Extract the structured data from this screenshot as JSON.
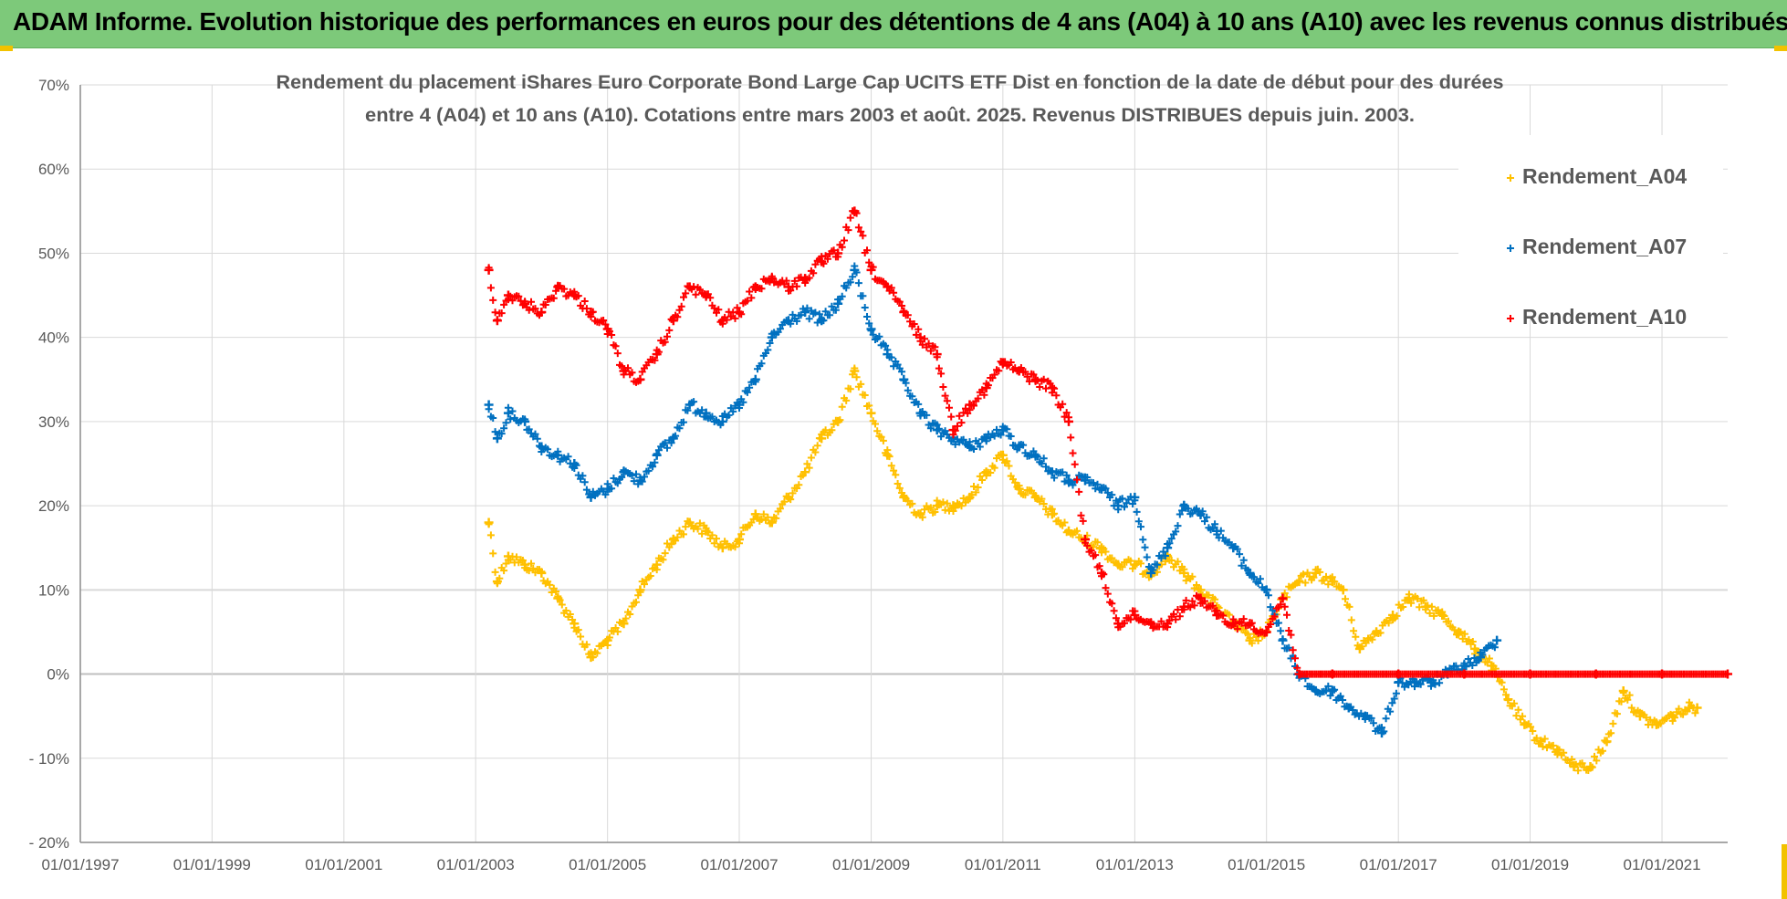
{
  "header": {
    "title": "ADAM Informe. Evolution historique des performances en euros pour des détentions de 4 ans (A04) à 10 ans (A10) avec les revenus connus distribués"
  },
  "colors": {
    "A04": "#ffc000",
    "A07": "#0070c0",
    "A10": "#ff0000",
    "header_bg": "#7dc97a",
    "grid": "#d9d9d9"
  },
  "chart_data": {
    "type": "scatter",
    "title_lines": [
      "Rendement du placement iShares Euro Corporate Bond Large Cap UCITS ETF Dist en fonction de la date de début pour des durées",
      "entre 4 (A04) et 10 ans (A10). Cotations entre mars 2003 et août. 2025. Revenus DISTRIBUES depuis juin. 2003."
    ],
    "xlabel": "",
    "ylabel": "",
    "xlim": [
      "1997-01-01",
      "2021-12-31"
    ],
    "ylim": [
      -20,
      70
    ],
    "x_ticks": [
      "01/01/1997",
      "01/01/1999",
      "01/01/2001",
      "01/01/2003",
      "01/01/2005",
      "01/01/2007",
      "01/01/2009",
      "01/01/2011",
      "01/01/2013",
      "01/01/2015",
      "01/01/2017",
      "01/01/2019",
      "01/01/2021"
    ],
    "y_ticks": [
      "- 20%",
      "- 10%",
      "0%",
      "10%",
      "20%",
      "30%",
      "40%",
      "50%",
      "60%",
      "70%"
    ],
    "legend_position": "top-right",
    "marker": "+",
    "series": [
      {
        "name": "Rendement_A04",
        "color": "#ffc000",
        "points": [
          [
            "2003-03-15",
            18
          ],
          [
            "2003-05-01",
            11
          ],
          [
            "2003-07-01",
            14
          ],
          [
            "2003-10-01",
            13
          ],
          [
            "2004-01-01",
            12
          ],
          [
            "2004-04-01",
            9
          ],
          [
            "2004-07-01",
            6
          ],
          [
            "2004-10-01",
            2
          ],
          [
            "2005-01-01",
            4
          ],
          [
            "2005-04-01",
            6
          ],
          [
            "2005-07-01",
            10
          ],
          [
            "2005-10-01",
            13
          ],
          [
            "2006-01-01",
            16
          ],
          [
            "2006-04-01",
            18
          ],
          [
            "2006-07-01",
            17
          ],
          [
            "2006-10-01",
            15
          ],
          [
            "2007-01-01",
            16
          ],
          [
            "2007-04-01",
            19
          ],
          [
            "2007-07-01",
            18
          ],
          [
            "2007-10-01",
            21
          ],
          [
            "2008-01-01",
            24
          ],
          [
            "2008-04-01",
            28
          ],
          [
            "2008-07-01",
            30
          ],
          [
            "2008-10-01",
            36
          ],
          [
            "2009-01-01",
            31
          ],
          [
            "2009-04-01",
            26
          ],
          [
            "2009-07-01",
            21
          ],
          [
            "2009-10-01",
            19
          ],
          [
            "2010-01-01",
            20
          ],
          [
            "2010-04-01",
            20
          ],
          [
            "2010-07-01",
            21
          ],
          [
            "2010-10-01",
            24
          ],
          [
            "2011-01-01",
            26
          ],
          [
            "2011-04-01",
            22
          ],
          [
            "2011-07-01",
            21
          ],
          [
            "2011-10-01",
            19
          ],
          [
            "2012-01-01",
            17
          ],
          [
            "2012-04-01",
            16
          ],
          [
            "2012-07-01",
            15
          ],
          [
            "2012-10-01",
            13
          ],
          [
            "2013-01-01",
            13
          ],
          [
            "2013-04-01",
            12
          ],
          [
            "2013-07-01",
            14
          ],
          [
            "2013-10-01",
            12
          ],
          [
            "2014-01-01",
            10
          ],
          [
            "2014-04-01",
            8
          ],
          [
            "2014-07-01",
            6
          ],
          [
            "2014-10-01",
            4
          ],
          [
            "2015-01-01",
            5
          ],
          [
            "2015-04-01",
            9
          ],
          [
            "2015-07-01",
            11
          ],
          [
            "2015-10-01",
            12
          ],
          [
            "2016-01-01",
            11
          ],
          [
            "2016-03-01",
            10
          ],
          [
            "2016-06-01",
            3
          ],
          [
            "2016-09-01",
            5
          ],
          [
            "2016-12-01",
            7
          ],
          [
            "2017-03-01",
            9
          ],
          [
            "2017-06-01",
            8
          ],
          [
            "2017-09-01",
            7
          ],
          [
            "2017-12-01",
            5
          ],
          [
            "2018-03-01",
            3
          ],
          [
            "2018-06-01",
            1
          ],
          [
            "2018-09-01",
            -3
          ],
          [
            "2018-12-01",
            -6
          ],
          [
            "2019-03-01",
            -8
          ],
          [
            "2019-06-01",
            -9
          ],
          [
            "2019-09-01",
            -11
          ],
          [
            "2019-12-01",
            -11
          ],
          [
            "2020-03-01",
            -8
          ],
          [
            "2020-06-01",
            -2
          ],
          [
            "2020-09-01",
            -5
          ],
          [
            "2020-12-01",
            -6
          ],
          [
            "2021-03-01",
            -5
          ],
          [
            "2021-06-01",
            -4
          ],
          [
            "2021-07-15",
            -4
          ]
        ]
      },
      {
        "name": "Rendement_A07",
        "color": "#0070c0",
        "points": [
          [
            "2003-03-15",
            32
          ],
          [
            "2003-05-01",
            28
          ],
          [
            "2003-07-01",
            31
          ],
          [
            "2003-10-01",
            30
          ],
          [
            "2004-01-01",
            27
          ],
          [
            "2004-04-01",
            26
          ],
          [
            "2004-07-01",
            25
          ],
          [
            "2004-10-01",
            21
          ],
          [
            "2005-01-01",
            22
          ],
          [
            "2005-04-01",
            24
          ],
          [
            "2005-07-01",
            23
          ],
          [
            "2005-10-01",
            26
          ],
          [
            "2006-01-01",
            28
          ],
          [
            "2006-04-01",
            32
          ],
          [
            "2006-07-01",
            31
          ],
          [
            "2006-10-01",
            30
          ],
          [
            "2007-01-01",
            32
          ],
          [
            "2007-04-01",
            35
          ],
          [
            "2007-07-01",
            40
          ],
          [
            "2007-10-01",
            42
          ],
          [
            "2008-01-01",
            43
          ],
          [
            "2008-04-01",
            42
          ],
          [
            "2008-07-01",
            44
          ],
          [
            "2008-10-01",
            48
          ],
          [
            "2009-01-01",
            41
          ],
          [
            "2009-04-01",
            38
          ],
          [
            "2009-07-01",
            35
          ],
          [
            "2009-10-01",
            31
          ],
          [
            "2010-01-01",
            29
          ],
          [
            "2010-04-01",
            28
          ],
          [
            "2010-07-01",
            27
          ],
          [
            "2010-10-01",
            28
          ],
          [
            "2011-01-01",
            29
          ],
          [
            "2011-04-01",
            27
          ],
          [
            "2011-07-01",
            26
          ],
          [
            "2011-10-01",
            24
          ],
          [
            "2012-01-01",
            23
          ],
          [
            "2012-04-01",
            23
          ],
          [
            "2012-07-01",
            22
          ],
          [
            "2012-10-01",
            20
          ],
          [
            "2013-01-01",
            21
          ],
          [
            "2013-04-01",
            12
          ],
          [
            "2013-07-01",
            15
          ],
          [
            "2013-10-01",
            20
          ],
          [
            "2014-01-01",
            19
          ],
          [
            "2014-04-01",
            17
          ],
          [
            "2014-07-01",
            15
          ],
          [
            "2014-10-01",
            12
          ],
          [
            "2015-01-01",
            10
          ],
          [
            "2015-04-01",
            4
          ],
          [
            "2015-07-01",
            0
          ],
          [
            "2015-10-01",
            -2
          ],
          [
            "2016-01-01",
            -2
          ],
          [
            "2016-04-01",
            -4
          ],
          [
            "2016-07-01",
            -5
          ],
          [
            "2016-10-01",
            -7
          ],
          [
            "2017-01-01",
            -1
          ],
          [
            "2017-04-01",
            -1
          ],
          [
            "2017-07-01",
            -1
          ],
          [
            "2017-10-01",
            0
          ],
          [
            "2018-01-01",
            1
          ],
          [
            "2018-04-01",
            2
          ],
          [
            "2018-07-01",
            4
          ]
        ]
      },
      {
        "name": "Rendement_A10",
        "color": "#ff0000",
        "points": [
          [
            "2003-03-15",
            48
          ],
          [
            "2003-05-01",
            42
          ],
          [
            "2003-07-01",
            45
          ],
          [
            "2003-10-01",
            44
          ],
          [
            "2004-01-01",
            43
          ],
          [
            "2004-04-01",
            46
          ],
          [
            "2004-07-01",
            45
          ],
          [
            "2004-10-01",
            43
          ],
          [
            "2005-01-01",
            41
          ],
          [
            "2005-04-01",
            36
          ],
          [
            "2005-07-01",
            35
          ],
          [
            "2005-10-01",
            38
          ],
          [
            "2006-01-01",
            42
          ],
          [
            "2006-04-01",
            46
          ],
          [
            "2006-07-01",
            45
          ],
          [
            "2006-10-01",
            42
          ],
          [
            "2007-01-01",
            43
          ],
          [
            "2007-04-01",
            46
          ],
          [
            "2007-07-01",
            47
          ],
          [
            "2007-10-01",
            46
          ],
          [
            "2008-01-01",
            47
          ],
          [
            "2008-04-01",
            49
          ],
          [
            "2008-07-01",
            50
          ],
          [
            "2008-10-01",
            55
          ],
          [
            "2009-01-01",
            48
          ],
          [
            "2009-04-01",
            46
          ],
          [
            "2009-07-01",
            43
          ],
          [
            "2009-10-01",
            40
          ],
          [
            "2010-01-01",
            38
          ],
          [
            "2010-04-01",
            29
          ],
          [
            "2010-07-01",
            32
          ],
          [
            "2010-10-01",
            34
          ],
          [
            "2011-01-01",
            37
          ],
          [
            "2011-04-01",
            36
          ],
          [
            "2011-07-01",
            35
          ],
          [
            "2011-10-01",
            34
          ],
          [
            "2012-01-01",
            30
          ],
          [
            "2012-04-01",
            16
          ],
          [
            "2012-07-01",
            12
          ],
          [
            "2012-10-01",
            6
          ],
          [
            "2013-01-01",
            7
          ],
          [
            "2013-04-01",
            6
          ],
          [
            "2013-07-01",
            6
          ],
          [
            "2013-10-01",
            8
          ],
          [
            "2014-01-01",
            9
          ],
          [
            "2014-04-01",
            7
          ],
          [
            "2014-07-01",
            6
          ],
          [
            "2014-10-01",
            6
          ],
          [
            "2015-01-01",
            5
          ],
          [
            "2015-04-01",
            9
          ],
          [
            "2015-07-01",
            0
          ],
          [
            "2016-01-01",
            0
          ],
          [
            "2017-01-01",
            0
          ],
          [
            "2018-01-01",
            0
          ],
          [
            "2019-01-01",
            0
          ],
          [
            "2020-01-01",
            0
          ],
          [
            "2021-01-01",
            0
          ],
          [
            "2021-12-31",
            0
          ]
        ]
      }
    ]
  }
}
